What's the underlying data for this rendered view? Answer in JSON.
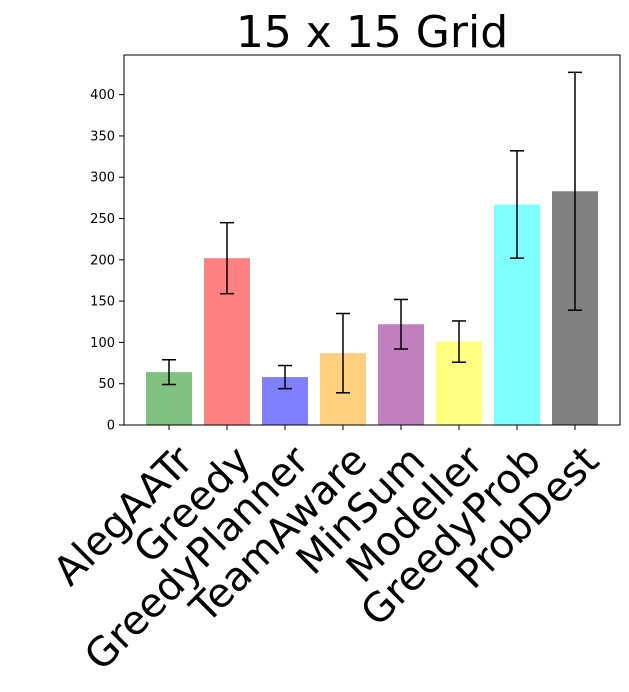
{
  "chart_data": {
    "type": "bar",
    "title": "15 x 15 Grid",
    "xlabel": "",
    "ylabel": "",
    "categories": [
      "AlegAATr",
      "Greedy",
      "GreedyPlanner",
      "TeamAware",
      "MinSum",
      "Modeller",
      "GreedyProb",
      "ProbDest"
    ],
    "values": [
      64,
      202,
      58,
      87,
      122,
      101,
      267,
      283
    ],
    "errors": [
      15,
      43,
      14,
      48,
      30,
      25,
      65,
      144
    ],
    "colors": [
      "#80c080",
      "#ff8080",
      "#8080ff",
      "#ffd080",
      "#c080c0",
      "#ffff80",
      "#80ffff",
      "#808080"
    ],
    "ylim": [
      0,
      448
    ],
    "yticks": [
      0,
      50,
      100,
      150,
      200,
      250,
      300,
      350,
      400
    ],
    "grid": false,
    "legend": "none"
  }
}
